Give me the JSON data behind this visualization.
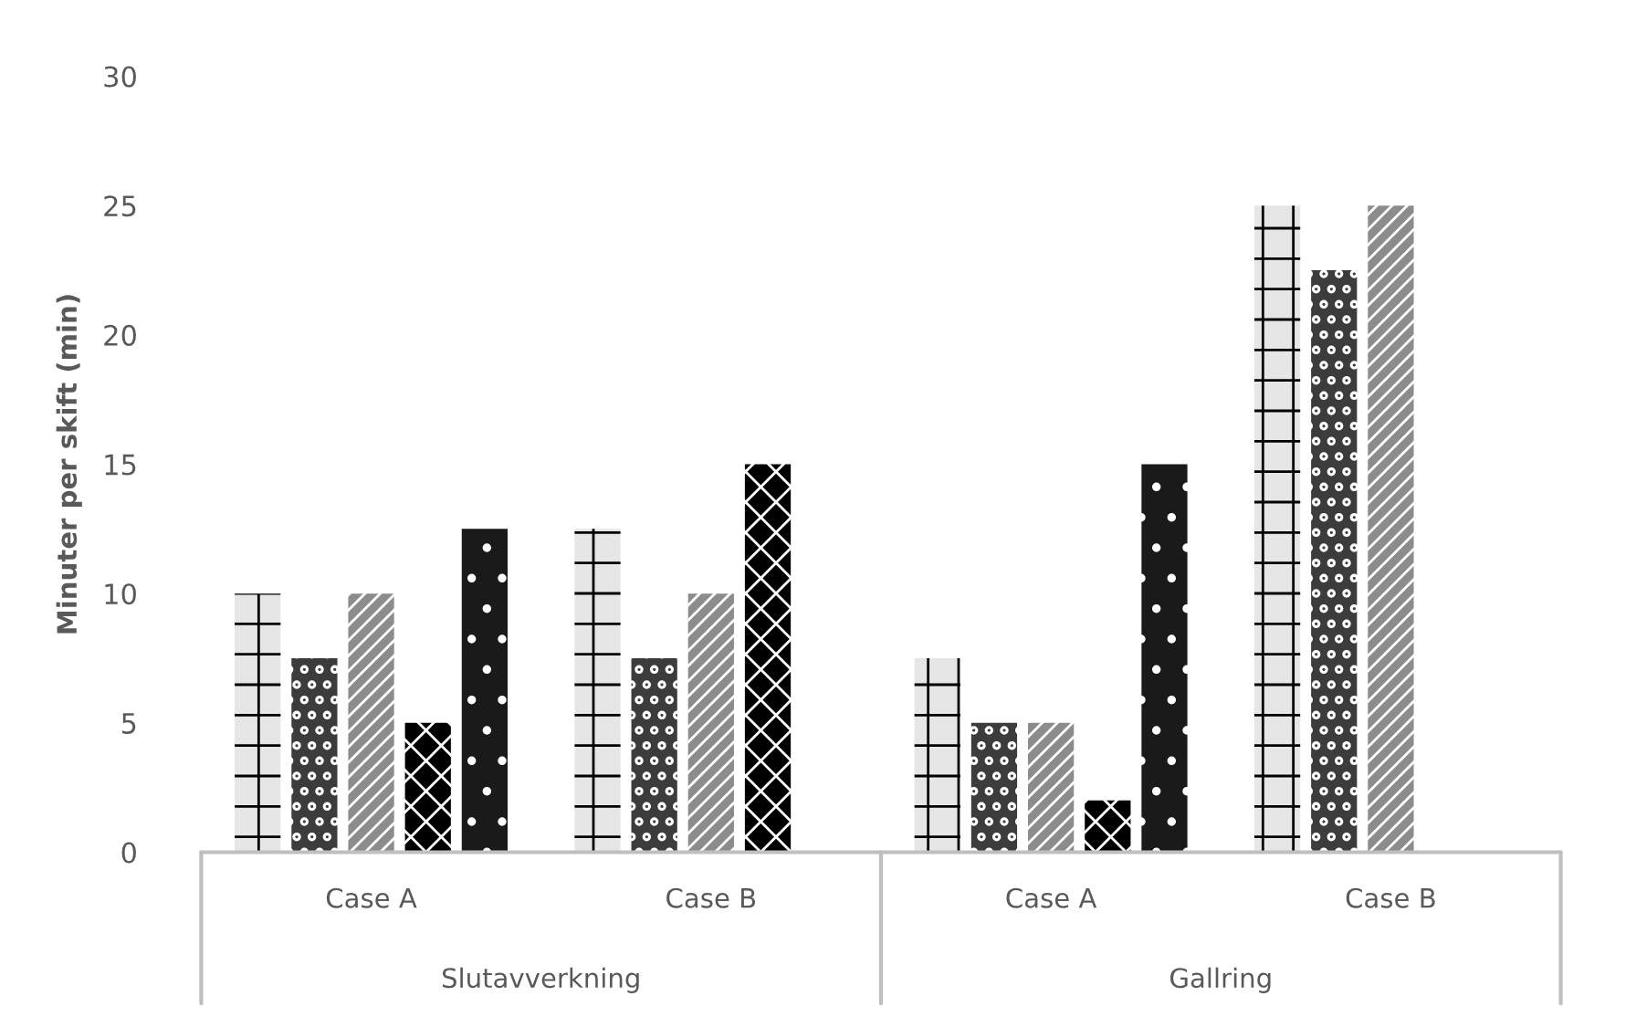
{
  "chart_data": {
    "type": "bar",
    "ylabel": "Minuter per skift (min)",
    "categories": [
      "Case A",
      "Case B",
      "Case A",
      "Case B"
    ],
    "annotations": [
      "Slutavverkning",
      "Gallring"
    ],
    "series": [
      {
        "color": "#e6e6e6",
        "values": [
          10,
          12.5,
          7.5,
          25
        ]
      },
      {
        "color": "#3c3c3c",
        "values": [
          7.5,
          7.5,
          5,
          22.5
        ]
      },
      {
        "color": "#8c8c8c",
        "values": [
          10,
          10,
          5,
          25
        ]
      },
      {
        "color": "#000000",
        "values": [
          5,
          15,
          2,
          null
        ]
      },
      {
        "color": "#1a1a1a",
        "values": [
          12.5,
          null,
          15,
          null
        ]
      }
    ],
    "ylim": [
      0,
      30
    ],
    "yticks": [
      0,
      5,
      10,
      15,
      20,
      25,
      30
    ],
    "grid": false,
    "legend": false
  }
}
